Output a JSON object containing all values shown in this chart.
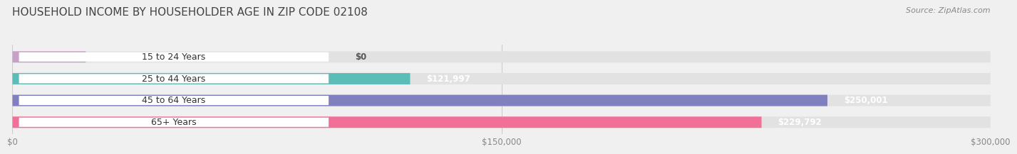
{
  "title": "HOUSEHOLD INCOME BY HOUSEHOLDER AGE IN ZIP CODE 02108",
  "source": "Source: ZipAtlas.com",
  "categories": [
    "15 to 24 Years",
    "25 to 44 Years",
    "45 to 64 Years",
    "65+ Years"
  ],
  "values": [
    0,
    121997,
    250001,
    229792
  ],
  "value_labels": [
    "$0",
    "$121,997",
    "$250,001",
    "$229,792"
  ],
  "bar_colors": [
    "#c9a0c8",
    "#5bbcb8",
    "#8080c0",
    "#f07098"
  ],
  "bg_color": "#f0f0f0",
  "bar_bg_color": "#e2e2e2",
  "xlim": [
    0,
    300000
  ],
  "xtick_labels": [
    "$0",
    "$150,000",
    "$300,000"
  ],
  "title_fontsize": 11,
  "source_fontsize": 8,
  "label_fontsize": 9,
  "tick_fontsize": 8.5
}
